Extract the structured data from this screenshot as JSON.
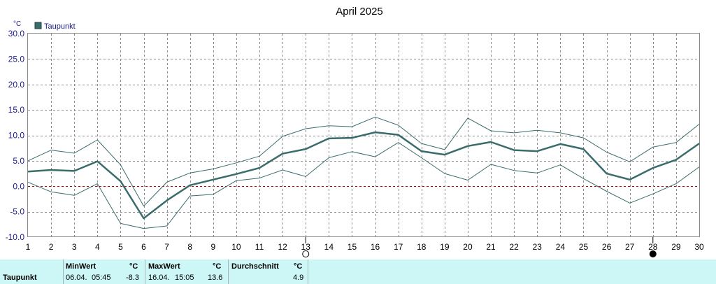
{
  "chart_data": {
    "type": "line",
    "title": "April 2025",
    "y_unit": "°C",
    "ylim": [
      -10,
      30
    ],
    "yticks": [
      "30.0",
      "25.0",
      "20.0",
      "15.0",
      "10.0",
      "5.0",
      "0.0",
      "-5.0",
      "-10.0"
    ],
    "x": [
      1,
      2,
      3,
      4,
      5,
      6,
      7,
      8,
      9,
      10,
      11,
      12,
      13,
      14,
      15,
      16,
      17,
      18,
      19,
      20,
      21,
      22,
      23,
      24,
      25,
      26,
      27,
      28,
      29,
      30
    ],
    "legend": "Taupunkt",
    "grid": true,
    "zero_line": true,
    "series": [
      {
        "name": "Taupunkt",
        "role": "mean",
        "values": [
          2.9,
          3.2,
          3.0,
          4.9,
          1.0,
          -6.3,
          -2.8,
          0.2,
          1.3,
          2.4,
          3.6,
          6.4,
          7.3,
          9.4,
          9.5,
          10.6,
          10.1,
          6.9,
          6.2,
          7.9,
          8.7,
          7.1,
          6.9,
          8.3,
          7.3,
          2.5,
          1.3,
          3.6,
          5.2,
          8.4
        ]
      },
      {
        "role": "max",
        "values": [
          5.0,
          7.1,
          6.5,
          9.1,
          4.2,
          -3.9,
          0.8,
          2.6,
          3.4,
          4.6,
          5.9,
          9.8,
          11.3,
          11.9,
          11.7,
          13.6,
          12.0,
          8.4,
          7.2,
          13.4,
          10.9,
          10.5,
          11.0,
          10.5,
          9.5,
          6.7,
          4.8,
          7.7,
          8.6,
          12.2
        ]
      },
      {
        "role": "min",
        "values": [
          0.8,
          -1.1,
          -1.8,
          0.5,
          -7.3,
          -8.3,
          -7.8,
          -1.9,
          -1.6,
          1.1,
          1.6,
          3.2,
          1.9,
          5.6,
          6.8,
          5.8,
          8.6,
          5.6,
          2.5,
          1.2,
          4.3,
          3.1,
          2.6,
          4.2,
          1.5,
          -1.0,
          -3.3,
          -1.5,
          0.5,
          3.8
        ]
      }
    ],
    "moon_phases": [
      {
        "day": 13,
        "phase": "full-moon"
      },
      {
        "day": 28,
        "phase": "new-moon"
      }
    ],
    "colors": {
      "series": "#3a6c6c",
      "zero_line": "#c00000",
      "grid": "#8c8c8c",
      "axis_labels": "#1c1c8c"
    }
  },
  "stats": {
    "row_label": "Taupunkt",
    "min": {
      "header": "MinWert",
      "unit": "°C",
      "date": "06.04.",
      "time": "05:45",
      "value": "-8.3"
    },
    "max": {
      "header": "MaxWert",
      "unit": "°C",
      "date": "16.04.",
      "time": "15:05",
      "value": "13.6"
    },
    "avg": {
      "header": "Durchschnitt",
      "unit": "°C",
      "value": "4.9"
    },
    "background": "#cdf6f6"
  }
}
